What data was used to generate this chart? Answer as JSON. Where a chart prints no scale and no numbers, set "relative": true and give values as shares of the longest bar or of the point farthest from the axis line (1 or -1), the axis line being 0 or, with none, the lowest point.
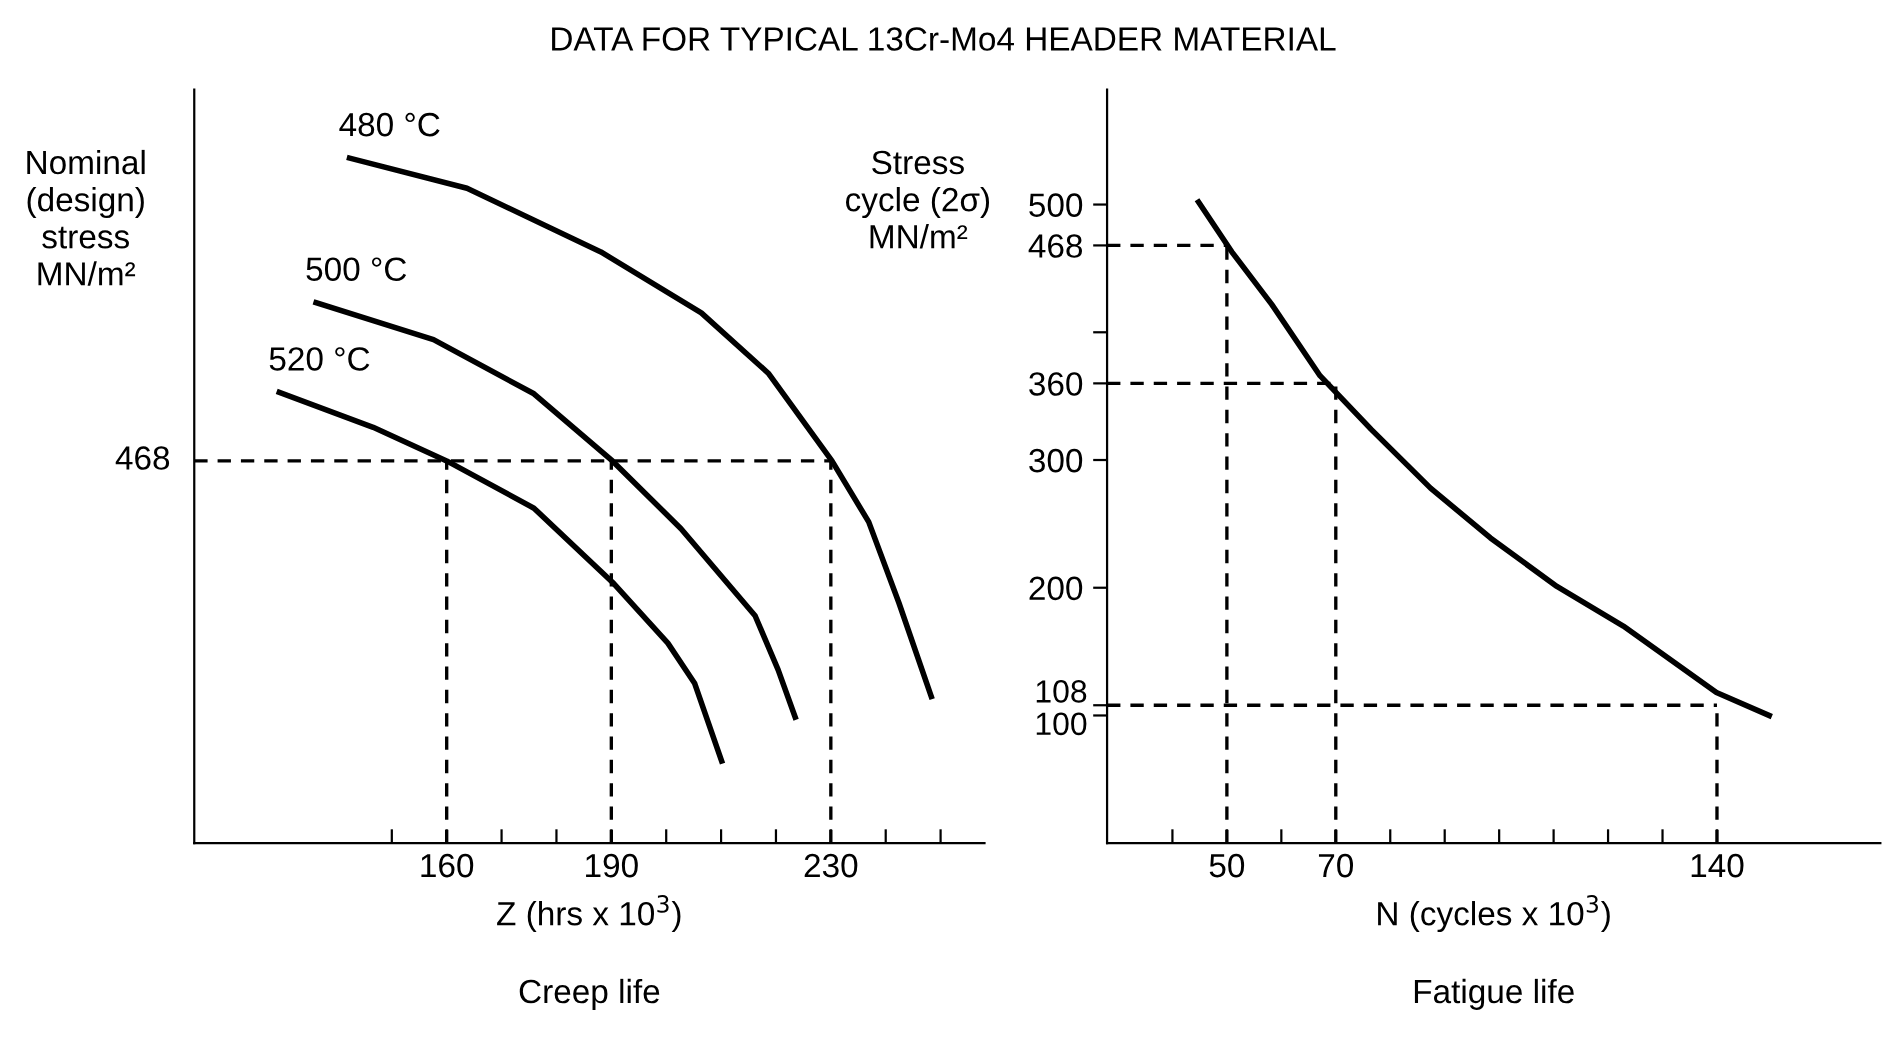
{
  "chart_data": [
    {
      "type": "line",
      "title": "DATA FOR TYPICAL 13Cr-Mo4 HEADER MATERIAL",
      "ylabel": "Nominal\n(design)\nstress\nMN/m²",
      "xlabel": "Z (hrs x 10$^{3}$)",
      "annotations": [
        "Creep life",
        "468"
      ],
      "relative": true,
      "xlim": [
        114,
        258
      ],
      "xticks": [
        {
          "value": 150,
          "label": null
        },
        160,
        {
          "value": 170,
          "label": null
        },
        {
          "value": 180,
          "label": null
        },
        190,
        {
          "value": 200,
          "label": null
        },
        {
          "value": 210,
          "label": null
        },
        {
          "value": 220,
          "label": null
        },
        230,
        {
          "value": 240,
          "label": null
        },
        {
          "value": 250,
          "label": null
        }
      ],
      "series": [
        {
          "name": "480 °C",
          "color": "#000000",
          "x": [
            142.3,
            163.7,
            188.1,
            206.4,
            218.6,
            230.2,
            236.9,
            242.4,
            248.3
          ],
          "values": [
            1.0,
            0.956,
            0.863,
            0.774,
            0.686,
            0.558,
            0.469,
            0.351,
            0.214
          ]
        },
        {
          "name": "500 °C",
          "color": "#000000",
          "x": [
            136.2,
            157.6,
            175.9,
            190.2,
            202.7,
            216.2,
            220.4,
            223.5
          ],
          "values": [
            0.789,
            0.735,
            0.656,
            0.558,
            0.459,
            0.332,
            0.253,
            0.184
          ]
        },
        {
          "name": "520 °C",
          "color": "#000000",
          "x": [
            129.5,
            146.6,
            160.0,
            175.9,
            190.2,
            200.3,
            205.2,
            210.1
          ],
          "values": [
            0.658,
            0.607,
            0.558,
            0.489,
            0.381,
            0.292,
            0.233,
            0.12
          ]
        }
      ],
      "ref_lines": [
        {
          "axis": "y",
          "value": 0.558,
          "line_style": "dashed"
        },
        {
          "axis": "x",
          "value": 160,
          "line_style": "dashed"
        },
        {
          "axis": "x",
          "value": 190,
          "line_style": "dashed"
        },
        {
          "axis": "x",
          "value": 230,
          "line_style": "dashed"
        }
      ],
      "grid": false,
      "legend": false,
      "marker": "none",
      "line_style": "solid"
    },
    {
      "type": "line",
      "ylabel": "Stress\ncycle (2σ)\nMN/m²",
      "xlabel": "N (cycles x 10$^{3}$)",
      "annotations": [
        "Fatigue life"
      ],
      "xlim": [
        28,
        170
      ],
      "xticks": [
        {
          "value": 40,
          "label": null
        },
        50,
        {
          "value": 60,
          "label": null
        },
        70,
        {
          "value": 80,
          "label": null
        },
        {
          "value": 90,
          "label": null
        },
        {
          "value": 100,
          "label": null
        },
        {
          "value": 110,
          "label": null
        },
        {
          "value": 120,
          "label": null
        },
        {
          "value": 130,
          "label": null
        },
        140
      ],
      "ylim": [
        0,
        590
      ],
      "yticks": [
        100,
        108,
        200,
        300,
        360,
        {
          "value": 400,
          "label": null
        },
        468,
        500
      ],
      "series": [
        {
          "color": "#000000",
          "x": [
            44.8,
            50.9,
            58.2,
            67.1,
            76.5,
            87.4,
            98.4,
            110.6,
            122.8,
            139.9,
            149.6
          ],
          "values": [
            502,
            463,
            422,
            366,
            324,
            278,
            239,
            201,
            170,
            118,
            100
          ]
        }
      ],
      "ref_lines": [
        {
          "axis": "y",
          "value": 468,
          "line_style": "dashed"
        },
        {
          "axis": "y",
          "value": 360,
          "line_style": "dashed"
        },
        {
          "axis": "y",
          "value": 108,
          "line_style": "dashed"
        },
        {
          "axis": "x",
          "value": 50,
          "line_style": "dashed"
        },
        {
          "axis": "x",
          "value": 70,
          "line_style": "dashed"
        },
        {
          "axis": "x",
          "value": 140,
          "line_style": "dashed"
        }
      ],
      "grid": false,
      "legend": false,
      "marker": "none",
      "line_style": "solid"
    }
  ]
}
